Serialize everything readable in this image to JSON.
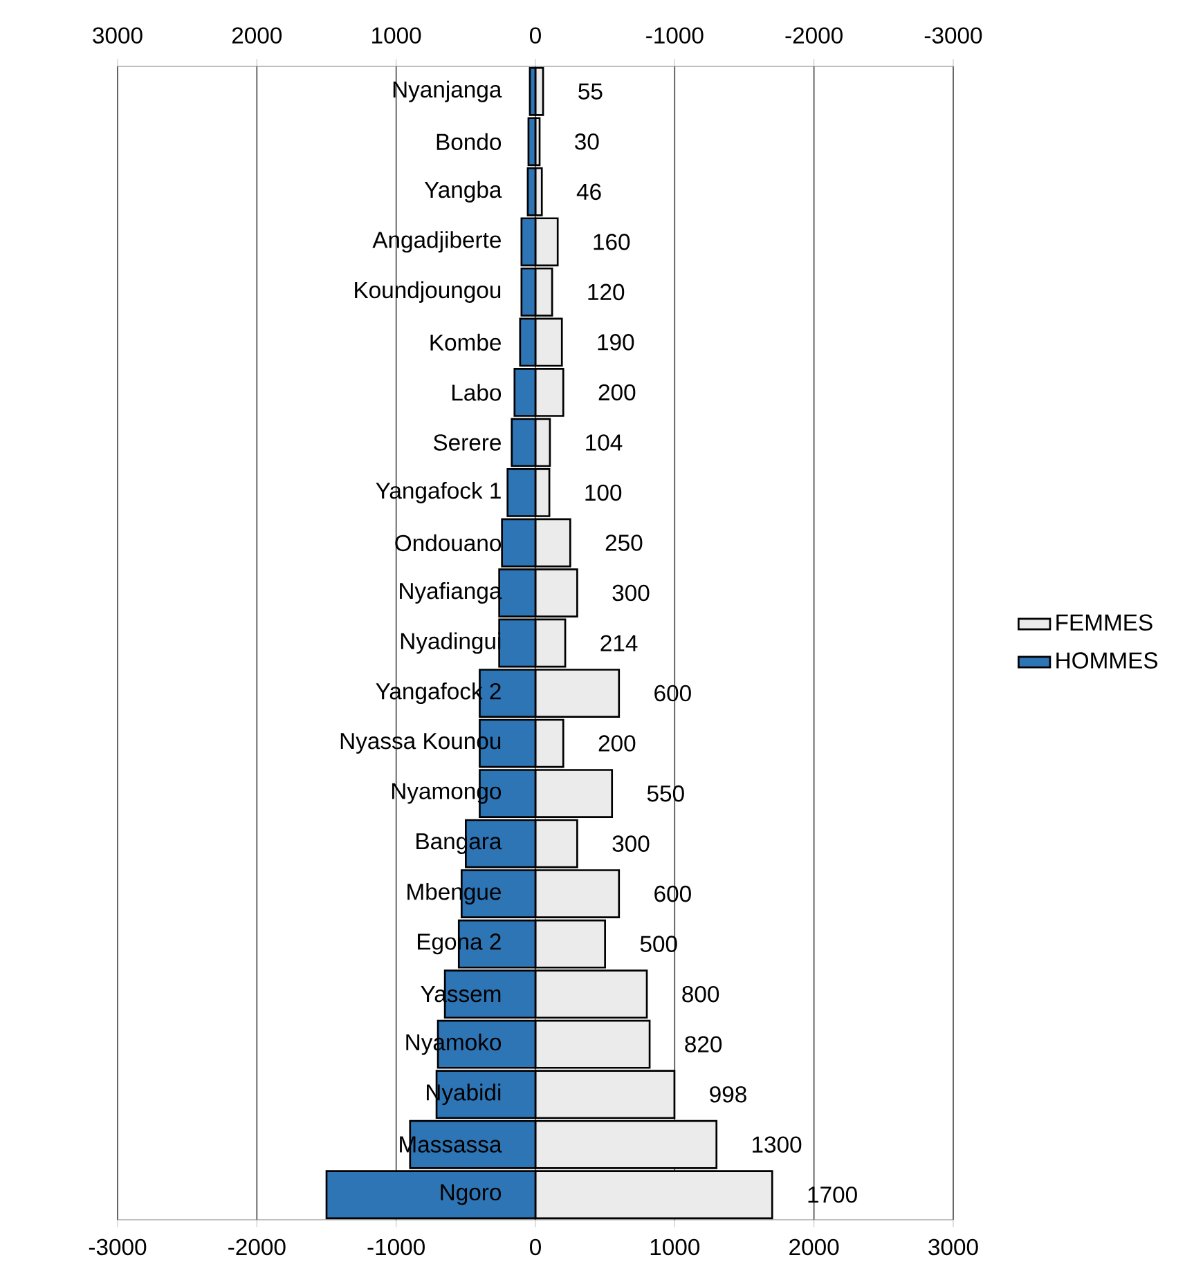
{
  "chart_data": {
    "type": "bar",
    "orientation": "horizontal",
    "categories": [
      "Nyanjanga",
      "Bondo",
      "Yangba",
      "Angadjiberte",
      "Koundjoungou",
      "Kombe",
      "Labo",
      "Serere",
      "Yangafock 1",
      "Ondouano",
      "Nyafianga",
      "Nyadingui",
      "Yangafock 2",
      "Nyassa Kounou",
      "Nyamongo",
      "Bangara",
      "Mbengue",
      "Egona 2",
      "Yassem",
      "Nyamoko",
      "Nyabidi",
      "Massassa",
      "Ngoro"
    ],
    "series": [
      {
        "name": "FEMMES",
        "color": "#ebebeb",
        "values": [
          55,
          30,
          46,
          160,
          120,
          190,
          200,
          104,
          100,
          250,
          300,
          214,
          600,
          200,
          550,
          300,
          600,
          500,
          800,
          820,
          998,
          1300,
          1700
        ],
        "value_labels": [
          "55",
          "30",
          "46",
          "160",
          "120",
          "190",
          "200",
          "104",
          "100",
          "250",
          "300",
          "214",
          "600",
          "200",
          "550",
          "300",
          "600",
          "500",
          "800",
          "820",
          "998",
          "1300",
          "1700"
        ]
      },
      {
        "name": "HOMMES",
        "color": "#2e75b6",
        "values": [
          -40,
          -50,
          -55,
          -100,
          -100,
          -110,
          -150,
          -170,
          -200,
          -240,
          -260,
          -260,
          -400,
          -400,
          -400,
          -500,
          -530,
          -550,
          -650,
          -700,
          -710,
          -900,
          -1500
        ]
      }
    ],
    "xlim": [
      -3000,
      3000
    ],
    "xticks": [
      -3000,
      -2000,
      -1000,
      0,
      1000,
      2000,
      3000
    ],
    "x2lim": [
      3000,
      -3000
    ],
    "x2ticks": [
      3000,
      2000,
      1000,
      0,
      -1000,
      -2000,
      -3000
    ],
    "stacked": true,
    "grid": "x",
    "legend": "right"
  }
}
